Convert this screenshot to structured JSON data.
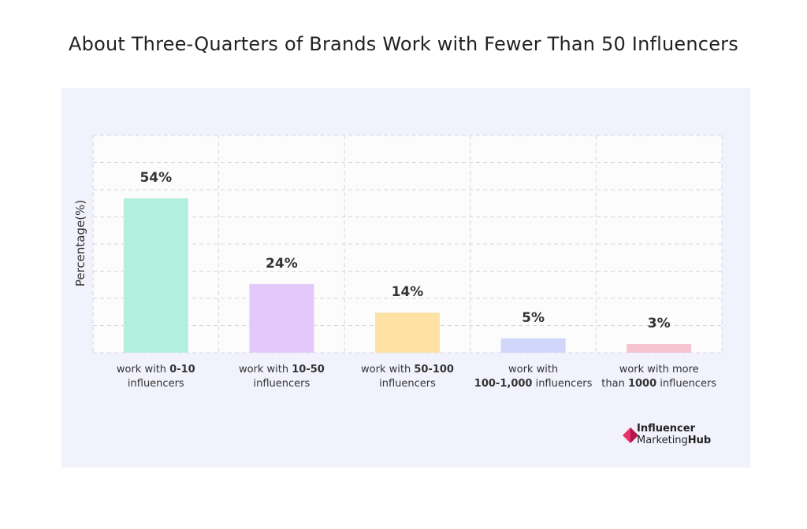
{
  "chart_data": {
    "type": "bar",
    "title": "About Three-Quarters of Brands Work with Fewer Than 50 Influencers",
    "ylabel": "Percentage(%)",
    "xlabel": "",
    "ylim": [
      0,
      60
    ],
    "grid": true,
    "categories": [
      {
        "pre": "work with ",
        "bold": "0-10",
        "line2_pre": "",
        "line2_bold": "",
        "line2_post": "influencers"
      },
      {
        "pre": "work with ",
        "bold": "10-50",
        "line2_pre": "",
        "line2_bold": "",
        "line2_post": "influencers"
      },
      {
        "pre": "work with ",
        "bold": "50-100",
        "line2_pre": "",
        "line2_bold": "",
        "line2_post": "influencers"
      },
      {
        "pre": "work with",
        "bold": "",
        "line2_pre": "",
        "line2_bold": "100-1,000",
        "line2_post": " influencers"
      },
      {
        "pre": "work with more",
        "bold": "",
        "line2_pre": "than ",
        "line2_bold": "1000",
        "line2_post": " influencers"
      }
    ],
    "values": [
      54,
      24,
      14,
      5,
      3
    ],
    "value_labels": [
      "54%",
      "24%",
      "14%",
      "5%",
      "3%"
    ],
    "colors": [
      "#b3efdd",
      "#e3c9fb",
      "#fde1a5",
      "#d0d7fa",
      "#f5c2cf"
    ]
  },
  "logo": {
    "line1": "Influencer",
    "line2_a": "Marketing",
    "line2_b": "Hub",
    "mark_colors": [
      "#e8336c",
      "#b0174a"
    ]
  }
}
